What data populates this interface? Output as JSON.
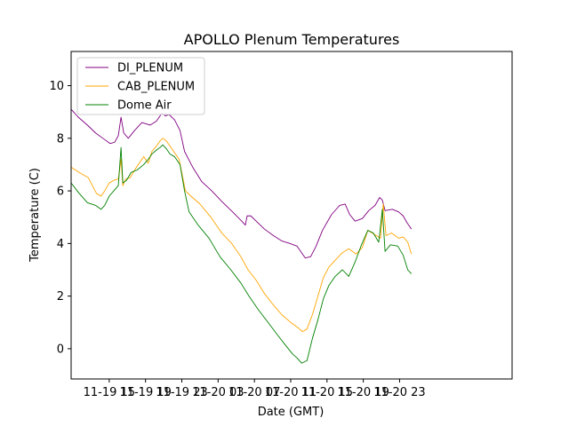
{
  "chart_data": {
    "type": "line",
    "title": "APOLLO Plenum Temperatures",
    "xlabel": "Date (GMT)",
    "ylabel": "Temperature (C)",
    "x_unit": "hours since 11-19 00:00 GMT",
    "xlim": [
      10.8,
      59.4
    ],
    "ylim": [
      -1.15,
      11.3
    ],
    "grid": false,
    "legend_position": "top-left",
    "x_ticks": [
      {
        "value": 15,
        "label": "11-19 15"
      },
      {
        "value": 19,
        "label": "11-19 19"
      },
      {
        "value": 23,
        "label": "11-19 23"
      },
      {
        "value": 27,
        "label": "11-20 03"
      },
      {
        "value": 31,
        "label": "11-20 07"
      },
      {
        "value": 35,
        "label": "11-20 11"
      },
      {
        "value": 39,
        "label": "11-20 15"
      },
      {
        "value": 43,
        "label": "11-20 19"
      },
      {
        "value": 47,
        "label": "11-20 23"
      }
    ],
    "y_ticks": [
      {
        "value": 0,
        "label": "0"
      },
      {
        "value": 2,
        "label": "2"
      },
      {
        "value": 4,
        "label": "4"
      },
      {
        "value": 6,
        "label": "6"
      },
      {
        "value": 8,
        "label": "8"
      },
      {
        "value": 10,
        "label": "10"
      }
    ],
    "series": [
      {
        "name": "DI_PLENUM",
        "color": "#800080",
        "x": [
          10.8,
          11.6,
          12.6,
          13.5,
          14.3,
          15.1,
          15.6,
          16.0,
          16.3,
          16.6,
          17.1,
          17.8,
          18.6,
          19.5,
          20.2,
          20.8,
          21.2,
          21.6,
          22.2,
          22.8,
          23.3,
          24.2,
          25.2,
          26.3,
          27.4,
          28.6,
          29.6,
          30.0,
          30.2,
          30.6,
          31.2,
          32.1,
          33.1,
          34.0,
          34.9,
          35.7,
          36.3,
          36.6,
          37.2,
          37.8,
          38.5,
          39.5,
          40.4,
          41.0,
          41.5,
          42.1,
          42.9,
          43.6,
          44.3,
          44.8,
          45.1,
          45.4,
          46.2,
          46.9,
          47.4,
          47.8,
          48.3
        ],
        "y": [
          9.1,
          8.8,
          8.5,
          8.2,
          8.0,
          7.8,
          7.85,
          8.1,
          8.8,
          8.2,
          8.0,
          8.3,
          8.6,
          8.5,
          8.65,
          8.95,
          8.85,
          8.9,
          8.7,
          8.3,
          7.5,
          6.9,
          6.35,
          6.0,
          5.6,
          5.2,
          4.85,
          4.7,
          5.05,
          5.05,
          4.85,
          4.55,
          4.3,
          4.1,
          4.0,
          3.9,
          3.6,
          3.45,
          3.5,
          3.9,
          4.5,
          5.1,
          5.45,
          5.5,
          5.1,
          4.85,
          4.95,
          5.25,
          5.45,
          5.75,
          5.65,
          5.25,
          5.3,
          5.2,
          5.05,
          4.8,
          4.55
        ]
      },
      {
        "name": "CAB_PLENUM",
        "color": "#ffa500",
        "x": [
          10.8,
          11.7,
          12.7,
          13.6,
          14.1,
          14.5,
          15.0,
          15.5,
          16.0,
          16.3,
          16.5,
          16.8,
          17.3,
          18.0,
          18.8,
          19.3,
          19.7,
          20.2,
          20.6,
          20.9,
          21.3,
          21.6,
          22.1,
          22.7,
          23.4,
          24.0,
          25.0,
          26.2,
          27.4,
          28.5,
          29.5,
          30.3,
          31.2,
          32.1,
          33.0,
          34.0,
          35.0,
          35.8,
          36.3,
          36.8,
          37.4,
          38.0,
          38.6,
          39.2,
          40.0,
          40.7,
          41.4,
          42.2,
          42.9,
          43.5,
          44.2,
          44.9,
          45.2,
          45.5,
          46.1,
          46.9,
          47.4,
          47.9,
          48.3
        ],
        "y": [
          6.9,
          6.7,
          6.5,
          5.9,
          5.8,
          6.0,
          6.3,
          6.4,
          6.45,
          7.2,
          6.2,
          6.45,
          6.5,
          6.9,
          7.3,
          7.05,
          7.5,
          7.7,
          7.9,
          8.0,
          7.9,
          7.75,
          7.5,
          7.2,
          6.0,
          5.8,
          5.5,
          5.0,
          4.4,
          4.0,
          3.5,
          3.0,
          2.6,
          2.1,
          1.7,
          1.3,
          1.0,
          0.8,
          0.65,
          0.75,
          1.3,
          2.0,
          2.7,
          3.1,
          3.4,
          3.65,
          3.8,
          3.6,
          3.85,
          4.5,
          4.35,
          4.2,
          5.5,
          4.3,
          4.4,
          4.2,
          4.25,
          4.05,
          3.6
        ]
      },
      {
        "name": "Dome Air",
        "color": "#008000",
        "x": [
          10.8,
          11.7,
          12.6,
          13.5,
          14.1,
          14.5,
          15.0,
          15.5,
          16.0,
          16.3,
          16.5,
          16.9,
          17.4,
          18.1,
          18.8,
          19.3,
          19.7,
          20.2,
          20.6,
          20.9,
          21.3,
          21.7,
          22.2,
          22.8,
          23.3,
          23.8,
          24.8,
          26.0,
          27.2,
          28.4,
          29.5,
          30.4,
          31.4,
          32.5,
          33.6,
          34.5,
          35.2,
          35.7,
          36.2,
          36.8,
          37.4,
          38.0,
          38.6,
          39.2,
          39.9,
          40.7,
          41.4,
          42.1,
          42.8,
          43.5,
          44.1,
          44.7,
          45.1,
          45.4,
          46.0,
          46.8,
          47.4,
          47.9,
          48.3
        ],
        "y": [
          6.3,
          5.9,
          5.55,
          5.45,
          5.3,
          5.45,
          5.8,
          6.0,
          6.2,
          7.65,
          6.3,
          6.4,
          6.7,
          6.8,
          7.0,
          7.2,
          7.4,
          7.55,
          7.65,
          7.75,
          7.6,
          7.4,
          7.3,
          7.0,
          6.0,
          5.2,
          4.7,
          4.2,
          3.5,
          3.0,
          2.5,
          2.0,
          1.5,
          1.0,
          0.5,
          0.1,
          -0.2,
          -0.35,
          -0.55,
          -0.45,
          0.4,
          1.1,
          1.9,
          2.4,
          2.75,
          3.0,
          2.75,
          3.3,
          3.95,
          4.5,
          4.4,
          4.05,
          5.3,
          3.7,
          3.95,
          3.9,
          3.55,
          3.0,
          2.85
        ]
      }
    ]
  }
}
